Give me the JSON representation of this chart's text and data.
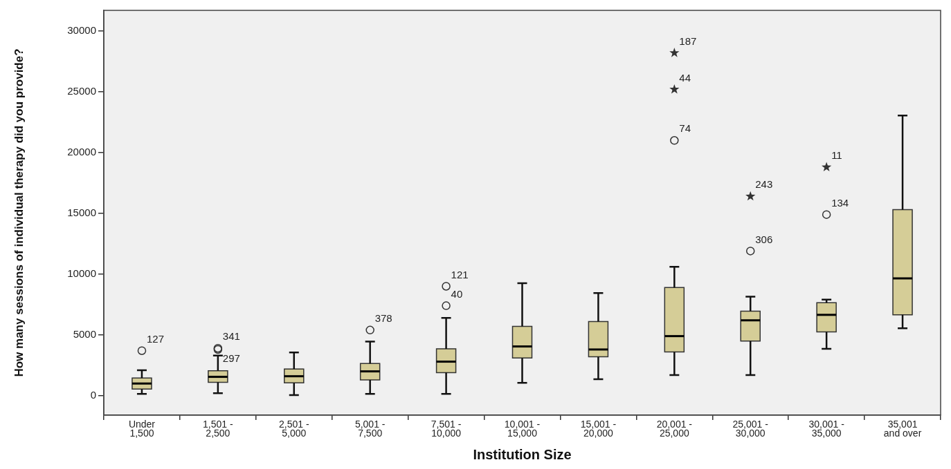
{
  "chart_data": {
    "type": "box",
    "categories": [
      "Under\n1,500",
      "1,501 -\n2,500",
      "2,501 -\n5,000",
      "5,001 -\n7,500",
      "7,501 -\n10,000",
      "10,001 -\n15,000",
      "15,001 -\n20,000",
      "20,001 -\n25,000",
      "25,001 -\n30,000",
      "30,001 -\n35,000",
      "35,001\nand over"
    ],
    "xlabel": "Institution Size",
    "ylabel": "How many sessions of individual therapy did you provide?",
    "ylim": [
      -1600,
      31700
    ],
    "yticks": [
      0,
      5000,
      10000,
      15000,
      20000,
      25000,
      30000
    ],
    "series": [
      {
        "type": "box",
        "color": "#d5cd97",
        "boxes": [
          {
            "low": 150,
            "q1": 550,
            "median": 1000,
            "q3": 1450,
            "high": 2100
          },
          {
            "low": 200,
            "q1": 1100,
            "median": 1550,
            "q3": 2050,
            "high": 3300
          },
          {
            "low": 50,
            "q1": 1050,
            "median": 1600,
            "q3": 2200,
            "high": 3550
          },
          {
            "low": 150,
            "q1": 1300,
            "median": 2000,
            "q3": 2650,
            "high": 4450
          },
          {
            "low": 150,
            "q1": 1900,
            "median": 2800,
            "q3": 3850,
            "high": 6400
          },
          {
            "low": 1050,
            "q1": 3100,
            "median": 4050,
            "q3": 5700,
            "high": 9250
          },
          {
            "low": 1350,
            "q1": 3200,
            "median": 3800,
            "q3": 6100,
            "high": 8450
          },
          {
            "low": 1700,
            "q1": 3600,
            "median": 4900,
            "q3": 8900,
            "high": 10600
          },
          {
            "low": 1700,
            "q1": 4500,
            "median": 6200,
            "q3": 6950,
            "high": 8150
          },
          {
            "low": 3850,
            "q1": 5250,
            "median": 6650,
            "q3": 7650,
            "high": 7900
          },
          {
            "low": 5550,
            "q1": 6650,
            "median": 9650,
            "q3": 15300,
            "high": 23050
          }
        ]
      },
      {
        "type": "scatter",
        "marker": "circle",
        "color": "#333333",
        "x": [
          "Under\n1,500",
          "1,501 -\n2,500",
          "1,501 -\n2,500",
          "5,001 -\n7,500",
          "7,501 -\n10,000",
          "7,501 -\n10,000",
          "20,001 -\n25,000",
          "25,001 -\n30,000",
          "30,001 -\n35,000"
        ],
        "values": [
          3700,
          3900,
          3800,
          5400,
          9000,
          7400,
          21000,
          11900,
          14900
        ]
      },
      {
        "type": "scatter",
        "marker": "star",
        "color": "#333333",
        "x": [
          "20,001 -\n25,000",
          "20,001 -\n25,000",
          "25,001 -\n30,000",
          "30,001 -\n35,000"
        ],
        "values": [
          28200,
          25200,
          16400,
          18800
        ]
      }
    ],
    "annotations": [
      {
        "text": "127",
        "x": "Under\n1,500",
        "y": 3700
      },
      {
        "text": "341",
        "x": "1,501 -\n2,500",
        "y": 3900
      },
      {
        "text": "297",
        "x": "1,501 -\n2,500",
        "y": 3800
      },
      {
        "text": "378",
        "x": "5,001 -\n7,500",
        "y": 5400
      },
      {
        "text": "121",
        "x": "7,501 -\n10,000",
        "y": 9000
      },
      {
        "text": "40",
        "x": "7,501 -\n10,000",
        "y": 7400
      },
      {
        "text": "187",
        "x": "20,001 -\n25,000",
        "y": 28200
      },
      {
        "text": "44",
        "x": "20,001 -\n25,000",
        "y": 25200
      },
      {
        "text": "74",
        "x": "20,001 -\n25,000",
        "y": 21000
      },
      {
        "text": "243",
        "x": "25,001 -\n30,000",
        "y": 16400
      },
      {
        "text": "306",
        "x": "25,001 -\n30,000",
        "y": 11900
      },
      {
        "text": "11",
        "x": "30,001 -\n35,000",
        "y": 18800
      },
      {
        "text": "134",
        "x": "30,001 -\n35,000",
        "y": 14900
      }
    ]
  }
}
